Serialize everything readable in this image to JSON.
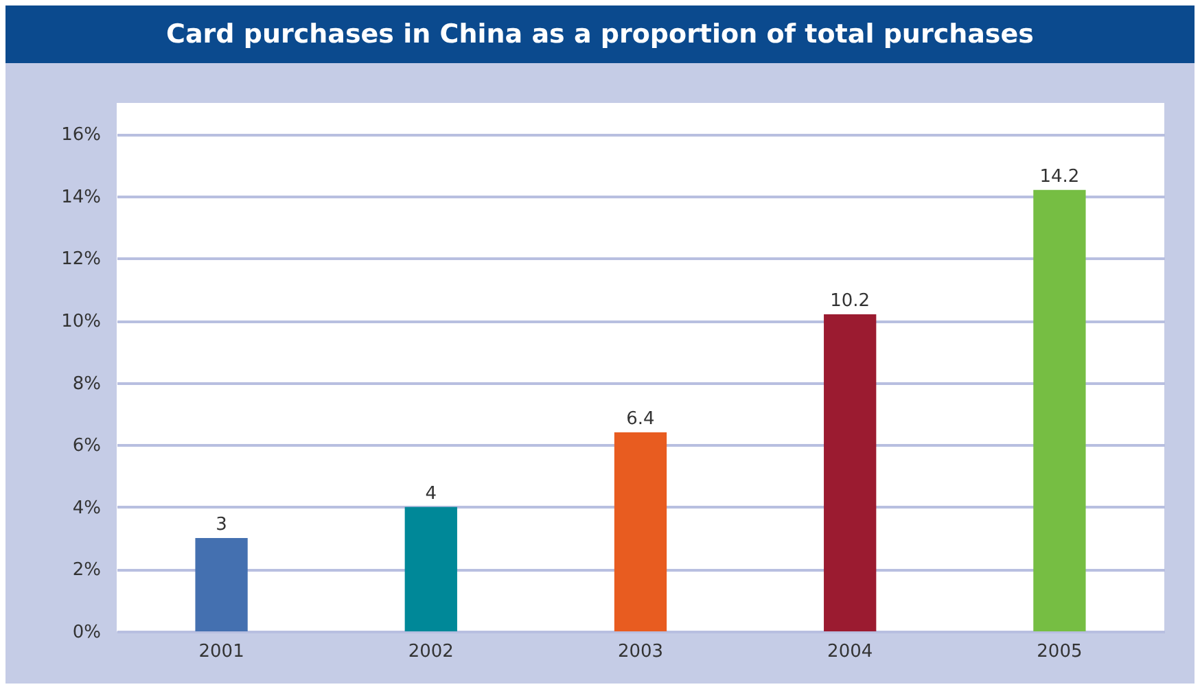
{
  "chart_data": {
    "type": "bar",
    "title": "Card purchases in China as a proportion of total purchases",
    "categories": [
      "2001",
      "2002",
      "2003",
      "2004",
      "2005"
    ],
    "values": [
      3,
      4,
      6.4,
      10.2,
      14.2
    ],
    "colors": [
      "#4470b0",
      "#008898",
      "#e85c20",
      "#9b1b30",
      "#76be43"
    ],
    "ylim": [
      0,
      17
    ],
    "yticks": [
      {
        "value": 0,
        "label": "0%"
      },
      {
        "value": 2,
        "label": "2%"
      },
      {
        "value": 4,
        "label": "4%"
      },
      {
        "value": 6,
        "label": "6%"
      },
      {
        "value": 8,
        "label": "8%"
      },
      {
        "value": 10,
        "label": "10%"
      },
      {
        "value": 12,
        "label": "12%"
      },
      {
        "value": 14,
        "label": "14%"
      },
      {
        "value": 16,
        "label": "16%"
      }
    ],
    "grid": true,
    "data_labels": true
  }
}
